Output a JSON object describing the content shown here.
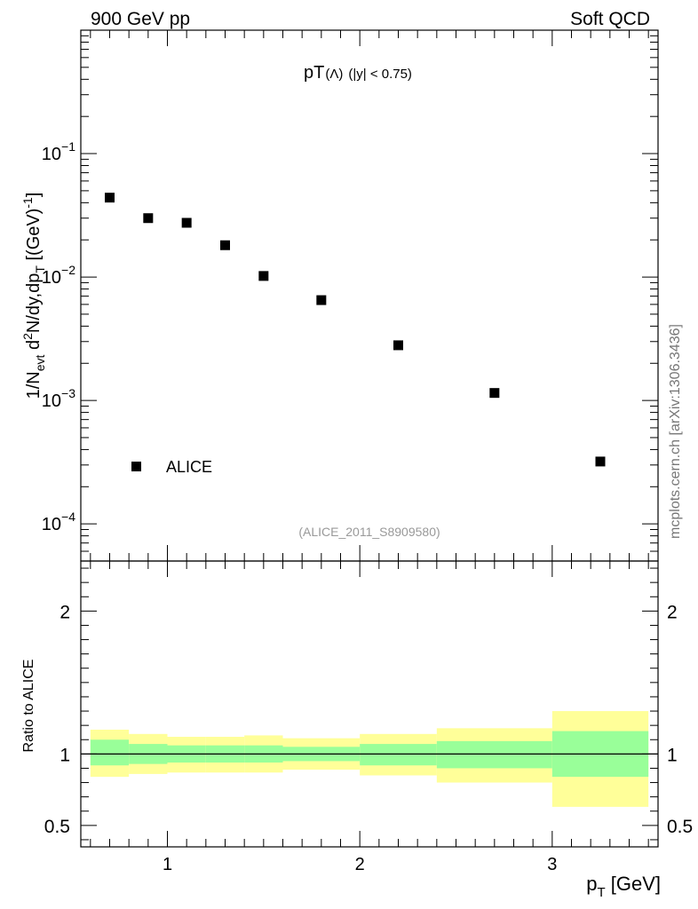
{
  "header": {
    "left": "900 GeV pp",
    "right": "Soft QCD"
  },
  "watermark": "mcplots.cern.ch [arXiv:1306.3436]",
  "analysis_tag": "(ALICE_2011_S8909580)",
  "colors": {
    "marker": "#000000",
    "band_inner": "#99ff99",
    "band_outer": "#ffff99",
    "tag": "#999999",
    "watermark": "#777777"
  },
  "chart_data": [
    {
      "type": "scatter",
      "panel": "main",
      "title": {
        "main": "pT",
        "paren": "(Λ)",
        "cut": "(|y| < 0.75)"
      },
      "ylabel": {
        "a": "1/N",
        "sub1": "evt",
        "b": " d",
        "sup1": "2",
        "c": "N/dy,dp",
        "sub2": "T",
        "d": " [(GeV)",
        "sup2": "-1",
        "e": "]"
      },
      "yscale": "log",
      "ylim": [
        5e-05,
        1.0
      ],
      "xlim": [
        0.55,
        3.55
      ],
      "ytick_labels": [
        {
          "base": "10",
          "exp": "−1",
          "value": 0.1
        },
        {
          "base": "10",
          "exp": "−2",
          "value": 0.01
        },
        {
          "base": "10",
          "exp": "−3",
          "value": 0.001
        },
        {
          "base": "10",
          "exp": "−4",
          "value": 0.0001
        }
      ],
      "legend": {
        "label": "ALICE",
        "placement": "bottom-left"
      },
      "series": [
        {
          "name": "ALICE",
          "x": [
            0.7,
            0.9,
            1.1,
            1.3,
            1.5,
            1.8,
            2.2,
            2.7,
            3.25
          ],
          "y": [
            0.044,
            0.03,
            0.0275,
            0.0181,
            0.0102,
            0.0065,
            0.0028,
            0.00115,
            0.00032
          ]
        }
      ]
    },
    {
      "type": "area",
      "panel": "ratio",
      "ylabel": "Ratio to ALICE",
      "xlabel": {
        "main": "p",
        "sub": "T",
        "unit": " [GeV]"
      },
      "xlim": [
        0.55,
        3.55
      ],
      "ylim": [
        0.35,
        2.35
      ],
      "reference_line": 1.0,
      "xtick_labels": [
        "1",
        "2",
        "3"
      ],
      "ytick_labels": [
        "2",
        "1",
        "0.5"
      ],
      "ytick_values": [
        2,
        1,
        0.5
      ],
      "bins": [
        {
          "x0": 0.6,
          "x1": 0.8,
          "inner": [
            0.92,
            1.1
          ],
          "outer": [
            0.84,
            1.17
          ]
        },
        {
          "x0": 0.8,
          "x1": 1.0,
          "inner": [
            0.93,
            1.07
          ],
          "outer": [
            0.86,
            1.14
          ]
        },
        {
          "x0": 1.0,
          "x1": 1.2,
          "inner": [
            0.94,
            1.06
          ],
          "outer": [
            0.87,
            1.12
          ]
        },
        {
          "x0": 1.2,
          "x1": 1.4,
          "inner": [
            0.94,
            1.06
          ],
          "outer": [
            0.87,
            1.12
          ]
        },
        {
          "x0": 1.4,
          "x1": 1.6,
          "inner": [
            0.94,
            1.06
          ],
          "outer": [
            0.87,
            1.13
          ]
        },
        {
          "x0": 1.6,
          "x1": 2.0,
          "inner": [
            0.95,
            1.05
          ],
          "outer": [
            0.89,
            1.11
          ]
        },
        {
          "x0": 2.0,
          "x1": 2.4,
          "inner": [
            0.92,
            1.07
          ],
          "outer": [
            0.85,
            1.14
          ]
        },
        {
          "x0": 2.4,
          "x1": 3.0,
          "inner": [
            0.9,
            1.09
          ],
          "outer": [
            0.8,
            1.18
          ]
        },
        {
          "x0": 3.0,
          "x1": 3.5,
          "inner": [
            0.84,
            1.16
          ],
          "outer": [
            0.63,
            1.3
          ]
        }
      ]
    }
  ]
}
